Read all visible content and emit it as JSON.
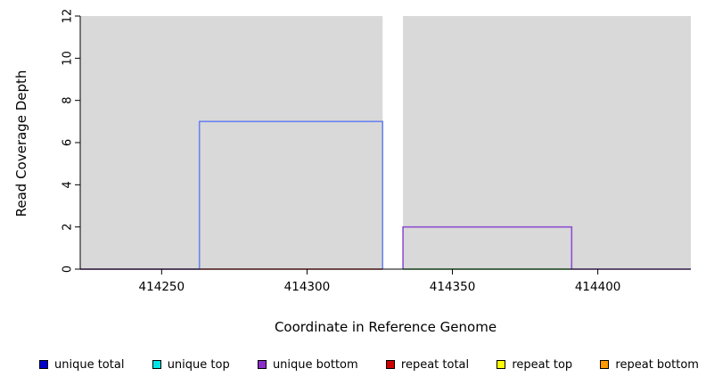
{
  "chart_data": {
    "type": "area",
    "title": "",
    "xlabel": "Coordinate in Reference Genome",
    "ylabel": "Read Coverage Depth",
    "xlim": [
      414222,
      414432
    ],
    "ylim": [
      0,
      12
    ],
    "xticks": [
      414250,
      414300,
      414350,
      414400
    ],
    "yticks": [
      0,
      2,
      4,
      6,
      8,
      10,
      12
    ],
    "plot_bg_color": "#d9d9d9",
    "gap_region": {
      "x0": 414326,
      "x1": 414333,
      "color": "#ffffff"
    },
    "series": [
      {
        "name": "repeat-total-baseline",
        "color": "#cf3333",
        "values": [
          [
            414222,
            0
          ],
          [
            414326,
            0
          ]
        ]
      },
      {
        "name": "unique-top-baseline",
        "color": "#3cb043",
        "values": [
          [
            414333,
            0
          ],
          [
            414391,
            0
          ]
        ]
      },
      {
        "name": "unique-total-step",
        "color": "#6b83ee",
        "values": [
          [
            414222,
            0
          ],
          [
            414263,
            0
          ],
          [
            414263,
            7
          ],
          [
            414326,
            7
          ],
          [
            414326,
            0
          ]
        ]
      },
      {
        "name": "unique-bottom-step",
        "color": "#8f4fd1",
        "values": [
          [
            414333,
            0
          ],
          [
            414333,
            2
          ],
          [
            414391,
            2
          ],
          [
            414391,
            0
          ],
          [
            414432,
            0
          ]
        ]
      }
    ],
    "legend": [
      {
        "label": "unique total",
        "color": "#0000cd"
      },
      {
        "label": "unique top",
        "color": "#00e5e5"
      },
      {
        "label": "unique bottom",
        "color": "#8b2fc9"
      },
      {
        "label": "repeat total",
        "color": "#cd0000"
      },
      {
        "label": "repeat top",
        "color": "#ffff00"
      },
      {
        "label": "repeat bottom",
        "color": "#ff9900"
      }
    ],
    "legend_position": "bottom",
    "grid": false
  }
}
